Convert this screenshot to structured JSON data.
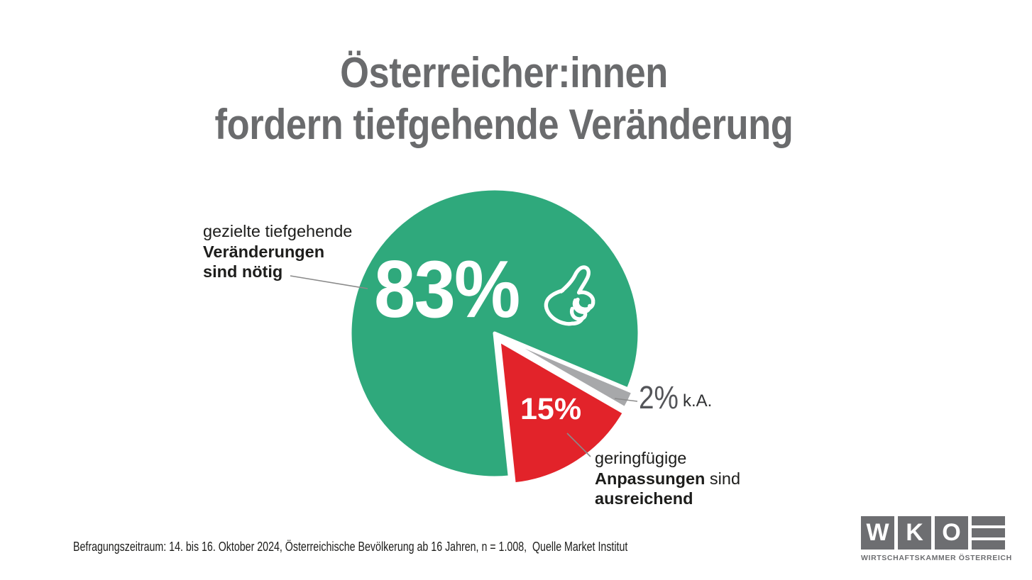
{
  "title": {
    "line1": "Österreicher:innen",
    "line2": "fordern tiefgehende Veränderung"
  },
  "chart_data": {
    "type": "pie",
    "title": "Österreicher:innen fordern tiefgehende Veränderung",
    "start_angle_deg": 174,
    "clockwise": true,
    "legend_position": "callouts",
    "slices": [
      {
        "id": "majority",
        "label": "gezielte tiefgehende Veränderungen sind nötig",
        "value": 83,
        "display": "83%",
        "color": "#2FA97C"
      },
      {
        "id": "minor",
        "label": "geringfügige Anpassungen sind ausreichend",
        "value": 15,
        "display": "15%",
        "color": "#E2232A"
      },
      {
        "id": "ka",
        "label": "k.A.",
        "value": 2,
        "display": "2%",
        "color": "#A7A8AA"
      }
    ]
  },
  "callouts": {
    "green": {
      "line1": "gezielte tiefgehende",
      "line2": "Veränderungen",
      "line3": "sind nötig"
    },
    "red": {
      "line1": "geringfügige",
      "line2_bold": "Anpassungen",
      "line2_rest": " sind",
      "line3_bold": "ausreichend"
    }
  },
  "footer": {
    "text": "Befragungszeitraum: 14. bis 16. Oktober 2024, Österreichische Bevölkerung ab 16 Jahren, n = 1.008,  Quelle Market Institut"
  },
  "logo": {
    "letters": [
      "W",
      "K",
      "O"
    ],
    "caption": "WIRTSCHAFTSKAMMER ÖSTERREICH"
  },
  "colors": {
    "green": "#2FA97C",
    "red": "#E2232A",
    "gray": "#A7A8AA",
    "title_gray": "#6A6B6D",
    "logo_gray": "#6D6E71",
    "leader_line": "#8A8A8A"
  }
}
